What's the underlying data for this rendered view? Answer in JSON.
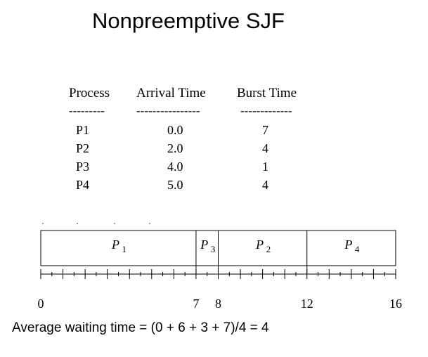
{
  "title": "Nonpreemptive SJF",
  "table": {
    "headers": [
      "Process",
      "Arrival Time",
      "Burst Time"
    ],
    "separators": [
      "---------",
      "----------------",
      "-------------"
    ],
    "rows": [
      {
        "process": "P1",
        "arrival": "0.0",
        "burst": "7"
      },
      {
        "process": "P2",
        "arrival": "2.0",
        "burst": "4"
      },
      {
        "process": "P3",
        "arrival": "4.0",
        "burst": "1"
      },
      {
        "process": "P4",
        "arrival": "5.0",
        "burst": "4"
      }
    ]
  },
  "gantt": {
    "segments": [
      {
        "label": "P",
        "sub": "1",
        "start": 0,
        "end": 7
      },
      {
        "label": "P",
        "sub": "3",
        "start": 7,
        "end": 8
      },
      {
        "label": "P",
        "sub": "2",
        "start": 8,
        "end": 12
      },
      {
        "label": "P",
        "sub": "4",
        "start": 12,
        "end": 16
      }
    ],
    "time_labels": [
      "0",
      "7",
      "8",
      "12",
      "16"
    ],
    "time_values": [
      0,
      7,
      8,
      12,
      16
    ],
    "total_time": 16
  },
  "footer": "Average waiting time = (0 + 6 + 3 + 7)/4  = 4"
}
